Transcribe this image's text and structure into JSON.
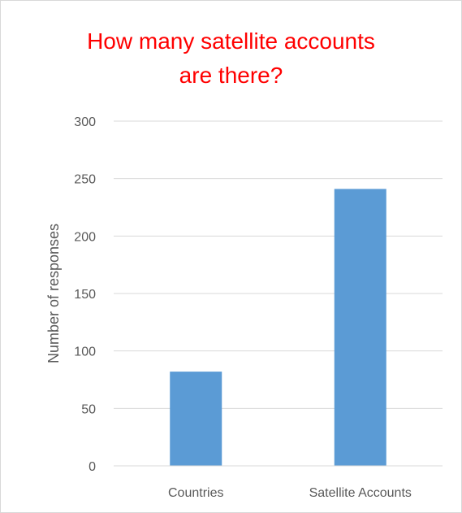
{
  "chart_data": {
    "type": "bar",
    "title_lines": [
      "How many satellite accounts",
      "are there?"
    ],
    "title_color": "#ff0000",
    "categories": [
      "Countries",
      "Satellite Accounts"
    ],
    "values": [
      82,
      241
    ],
    "ylabel": "Number of responses",
    "xlabel": "",
    "ylim": [
      0,
      300
    ],
    "yticks": [
      "0",
      "50",
      "100",
      "150",
      "200",
      "250",
      "300"
    ],
    "bar_color": "#5b9bd5",
    "grid": true,
    "legend": "none"
  }
}
